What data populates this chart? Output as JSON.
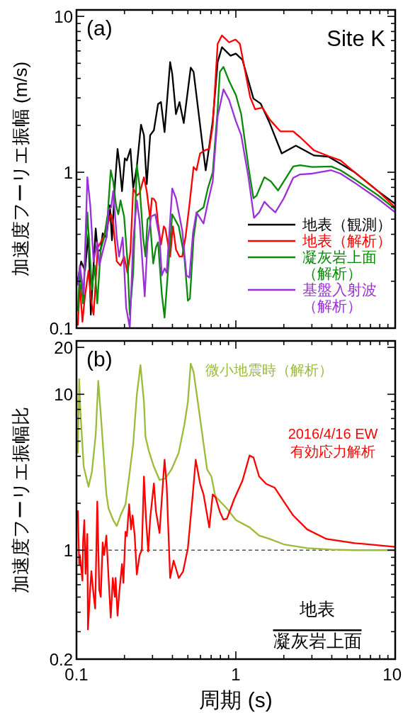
{
  "chart_data": [
    {
      "type": "line",
      "ylabel": "加速度フーリエ振幅 (m/s)",
      "log": "xy",
      "legend": "bottom right",
      "tick_labels": "y",
      "annotations": [
        "(a)",
        "Site K"
      ],
      "xlim": [
        0.1,
        10
      ],
      "ylim": [
        0.1,
        11
      ],
      "xticks": [
        0.1,
        {
          "value": 0.2,
          "label": null
        },
        {
          "value": 0.3,
          "label": null
        },
        {
          "value": 0.4,
          "label": null
        },
        {
          "value": 0.5,
          "label": null
        },
        {
          "value": 0.6,
          "label": null
        },
        {
          "value": 0.7,
          "label": null
        },
        {
          "value": 0.8,
          "label": null
        },
        {
          "value": 0.9,
          "label": null
        },
        1,
        {
          "value": 2,
          "label": null
        },
        {
          "value": 3,
          "label": null
        },
        {
          "value": 4,
          "label": null
        },
        {
          "value": 5,
          "label": null
        },
        {
          "value": 6,
          "label": null
        },
        {
          "value": 7,
          "label": null
        },
        {
          "value": 8,
          "label": null
        },
        {
          "value": 9,
          "label": null
        },
        10
      ],
      "yticks": [
        0.1,
        {
          "value": 0.2,
          "label": null
        },
        {
          "value": 0.3,
          "label": null
        },
        {
          "value": 0.4,
          "label": null
        },
        {
          "value": 0.5,
          "label": null
        },
        {
          "value": 0.6,
          "label": null
        },
        {
          "value": 0.7,
          "label": null
        },
        {
          "value": 0.8,
          "label": null
        },
        {
          "value": 0.9,
          "label": null
        },
        1,
        {
          "value": 2,
          "label": null
        },
        {
          "value": 3,
          "label": null
        },
        {
          "value": 4,
          "label": null
        },
        {
          "value": 5,
          "label": null
        },
        {
          "value": 6,
          "label": null
        },
        {
          "value": 7,
          "label": null
        },
        {
          "value": 8,
          "label": null
        },
        {
          "value": 9,
          "label": null
        },
        10
      ],
      "series": [
        {
          "name": "地表（観測）",
          "color": "#000000",
          "x": [
            0.102,
            0.107,
            0.113,
            0.119,
            0.123,
            0.128,
            0.132,
            0.136,
            0.142,
            0.146,
            0.154,
            0.162,
            0.167,
            0.174,
            0.181,
            0.187,
            0.193,
            0.201,
            0.207,
            0.218,
            0.227,
            0.239,
            0.254,
            0.265,
            0.276,
            0.29,
            0.306,
            0.325,
            0.339,
            0.357,
            0.387,
            0.399,
            0.421,
            0.443,
            0.471,
            0.521,
            0.543,
            0.627,
            0.647,
            0.667,
            0.716,
            0.769,
            0.818,
            0.926,
            1.0,
            1.1,
            1.29,
            1.43,
            1.63,
            1.94,
            2.38,
            3.1,
            3.81,
            5.57,
            7.82,
            10
          ],
          "values": [
            0.205,
            0.268,
            0.234,
            0.406,
            0.122,
            0.252,
            0.436,
            0.31,
            0.32,
            0.406,
            0.381,
            0.614,
            0.366,
            0.813,
            1.41,
            1.08,
            0.756,
            1.23,
            1.19,
            1.41,
            0.787,
            1.08,
            2.02,
            1.73,
            0.838,
            1.73,
            1.86,
            2.74,
            2.82,
            1.81,
            5.09,
            4.27,
            2.36,
            2.82,
            2.07,
            4.69,
            4.41,
            1.32,
            1.03,
            1.27,
            2.13,
            5.09,
            6.34,
            5.59,
            5.77,
            5.26,
            2.97,
            2.76,
            2.07,
            1.32,
            1.48,
            1.28,
            1.26,
            1.0,
            0.755,
            0.627
          ]
        },
        {
          "name": "地表（解析）",
          "color": "#ff0000",
          "x": [
            0.102,
            0.105,
            0.109,
            0.113,
            0.119,
            0.123,
            0.128,
            0.131,
            0.136,
            0.142,
            0.149,
            0.159,
            0.165,
            0.17,
            0.179,
            0.189,
            0.199,
            0.209,
            0.218,
            0.227,
            0.239,
            0.249,
            0.265,
            0.276,
            0.29,
            0.297,
            0.306,
            0.315,
            0.325,
            0.339,
            0.353,
            0.361,
            0.387,
            0.403,
            0.421,
            0.443,
            0.461,
            0.485,
            0.511,
            0.543,
            0.566,
            0.596,
            0.647,
            0.681,
            0.716,
            0.769,
            0.818,
            0.907,
            0.995,
            1.06,
            1.23,
            1.32,
            1.47,
            1.63,
            1.9,
            2.29,
            2.53,
            3.1,
            3.81,
            4.54,
            5.57,
            7.82,
            10
          ],
          "values": [
            0.105,
            0.19,
            0.11,
            0.16,
            0.234,
            0.155,
            0.122,
            0.177,
            0.33,
            0.355,
            0.393,
            0.484,
            0.537,
            0.469,
            0.268,
            0.252,
            0.288,
            0.227,
            0.31,
            0.787,
            0.71,
            0.733,
            0.929,
            0.756,
            0.499,
            0.681,
            0.674,
            0.64,
            0.469,
            0.344,
            0.45,
            0.436,
            0.288,
            0.45,
            0.32,
            0.288,
            0.288,
            0.393,
            0.614,
            1.08,
            1.03,
            1.32,
            1.39,
            1.41,
            2.0,
            6.67,
            7.55,
            6.81,
            7.1,
            6.67,
            3.03,
            2.54,
            2.6,
            2.18,
            1.83,
            1.83,
            1.68,
            1.38,
            1.27,
            1.19,
            1.0,
            0.755,
            0.596
          ]
        },
        {
          "name": "凝灰岩上面（解析）",
          "color": "#0a8a0a",
          "x": [
            0.102,
            0.105,
            0.11,
            0.117,
            0.122,
            0.125,
            0.13,
            0.135,
            0.142,
            0.149,
            0.157,
            0.164,
            0.17,
            0.177,
            0.183,
            0.189,
            0.199,
            0.209,
            0.216,
            0.227,
            0.239,
            0.249,
            0.262,
            0.271,
            0.279,
            0.288,
            0.303,
            0.315,
            0.325,
            0.343,
            0.357,
            0.376,
            0.399,
            0.438,
            0.475,
            0.5,
            0.515,
            0.543,
            0.571,
            0.627,
            0.667,
            0.716,
            0.769,
            0.794,
            0.836,
            0.907,
            1.0,
            1.08,
            1.2,
            1.29,
            1.35,
            1.51,
            1.66,
            1.84,
            2.0,
            2.29,
            2.53,
            3.01,
            3.97,
            4.54,
            5.57,
            7.82,
            10
          ],
          "values": [
            0.13,
            0.234,
            0.144,
            0.553,
            0.268,
            0.177,
            0.252,
            0.144,
            0.32,
            0.381,
            0.537,
            1.03,
            0.874,
            0.614,
            0.537,
            0.66,
            0.52,
            0.268,
            0.122,
            0.227,
            1.11,
            0.813,
            0.381,
            0.288,
            0.499,
            0.52,
            0.26,
            0.33,
            0.355,
            0.166,
            0.117,
            0.242,
            0.537,
            0.45,
            0.288,
            0.15,
            0.155,
            0.381,
            0.553,
            0.596,
            0.787,
            1.0,
            2.54,
            4.41,
            4.74,
            3.85,
            3.13,
            2.36,
            1.08,
            0.681,
            0.71,
            0.929,
            0.874,
            0.764,
            0.874,
            1.09,
            1.11,
            1.08,
            1.09,
            1.03,
            0.901,
            0.71,
            0.58
          ]
        },
        {
          "name": "基盤入射波（解析）",
          "color": "#9b30d9",
          "x": [
            0.102,
            0.105,
            0.111,
            0.117,
            0.122,
            0.128,
            0.135,
            0.139,
            0.146,
            0.154,
            0.159,
            0.165,
            0.17,
            0.179,
            0.185,
            0.195,
            0.205,
            0.216,
            0.227,
            0.239,
            0.249,
            0.268,
            0.279,
            0.294,
            0.312,
            0.332,
            0.343,
            0.357,
            0.368,
            0.399,
            0.421,
            0.461,
            0.49,
            0.511,
            0.538,
            0.566,
            0.627,
            0.667,
            0.716,
            0.769,
            0.836,
            0.907,
            1.0,
            1.08,
            1.2,
            1.3,
            1.4,
            1.51,
            1.63,
            1.77,
            2.0,
            2.29,
            2.53,
            3.01,
            3.97,
            4.54,
            5.57,
            7.82,
            10
          ],
          "values": [
            0.19,
            0.252,
            0.166,
            0.929,
            0.614,
            0.268,
            0.355,
            0.252,
            0.31,
            0.381,
            0.577,
            0.596,
            0.756,
            0.381,
            0.288,
            0.381,
            0.135,
            0.101,
            0.366,
            0.66,
            0.484,
            0.16,
            0.355,
            0.52,
            0.537,
            0.381,
            0.218,
            0.242,
            0.227,
            0.787,
            0.681,
            0.423,
            0.218,
            0.211,
            0.406,
            0.553,
            0.469,
            0.64,
            0.874,
            2.29,
            3.4,
            2.91,
            2.13,
            1.73,
            0.929,
            0.51,
            0.553,
            0.647,
            0.596,
            0.553,
            0.681,
            0.921,
            0.969,
            0.98,
            1.03,
            0.98,
            0.856,
            0.674,
            0.553
          ]
        }
      ]
    },
    {
      "type": "line",
      "xlabel": "周期 (s)",
      "ylabel": "加速度フーリエ振幅比",
      "log": "xy",
      "legend": false,
      "annotations": [
        "(b)",
        "地表",
        "凝灰岩上面"
      ],
      "xlim": [
        0.1,
        10
      ],
      "ylim": [
        0.2,
        22
      ],
      "xticks": [
        0.1,
        {
          "value": 0.2,
          "label": null
        },
        {
          "value": 0.3,
          "label": null
        },
        {
          "value": 0.4,
          "label": null
        },
        {
          "value": 0.5,
          "label": null
        },
        {
          "value": 0.6,
          "label": null
        },
        {
          "value": 0.7,
          "label": null
        },
        {
          "value": 0.8,
          "label": null
        },
        {
          "value": 0.9,
          "label": null
        },
        1,
        {
          "value": 2,
          "label": null
        },
        {
          "value": 3,
          "label": null
        },
        {
          "value": 4,
          "label": null
        },
        {
          "value": 5,
          "label": null
        },
        {
          "value": 6,
          "label": null
        },
        {
          "value": 7,
          "label": null
        },
        {
          "value": 8,
          "label": null
        },
        {
          "value": 9,
          "label": null
        },
        10
      ],
      "yticks": [
        0.2,
        {
          "value": 0.3,
          "label": null
        },
        {
          "value": 0.4,
          "label": null
        },
        {
          "value": 0.5,
          "label": null
        },
        {
          "value": 0.6,
          "label": null
        },
        {
          "value": 0.7,
          "label": null
        },
        {
          "value": 0.8,
          "label": null
        },
        {
          "value": 0.9,
          "label": null
        },
        1,
        {
          "value": 2,
          "label": null
        },
        {
          "value": 3,
          "label": null
        },
        {
          "value": 4,
          "label": null
        },
        {
          "value": 5,
          "label": null
        },
        {
          "value": 6,
          "label": null
        },
        {
          "value": 7,
          "label": null
        },
        {
          "value": 8,
          "label": null
        },
        {
          "value": 9,
          "label": null
        },
        10,
        20
      ],
      "ref_lines": [
        {
          "axis": "y",
          "value": 1,
          "color": "#555555",
          "line_style": "dashed"
        }
      ],
      "series": [
        {
          "name": "微小地震時（解析）",
          "color": "#9bbb3a",
          "x": [
            0.102,
            0.104,
            0.106,
            0.111,
            0.119,
            0.125,
            0.132,
            0.137,
            0.143,
            0.154,
            0.159,
            0.17,
            0.179,
            0.189,
            0.203,
            0.216,
            0.227,
            0.239,
            0.252,
            0.265,
            0.271,
            0.284,
            0.306,
            0.332,
            0.361,
            0.395,
            0.438,
            0.475,
            0.5,
            0.521,
            0.543,
            0.583,
            0.627,
            0.66,
            0.702,
            0.739,
            0.754,
            0.879,
            1.0,
            1.22,
            1.4,
            1.63,
            2.0,
            2.8,
            3.97,
            5.57,
            10
          ],
          "values": [
            4.22,
            12.5,
            7.5,
            3.43,
            2.55,
            3.19,
            5.51,
            12.2,
            6.77,
            2.28,
            1.85,
            1.56,
            1.43,
            1.67,
            1.97,
            3.19,
            4.82,
            9.9,
            15.4,
            8.93,
            5.34,
            4.35,
            3.43,
            2.82,
            2.88,
            3.3,
            4.22,
            6.36,
            8.93,
            15.7,
            13.9,
            8.31,
            4.82,
            3.3,
            2.97,
            2.28,
            2.18,
            1.85,
            1.56,
            1.4,
            1.24,
            1.18,
            1.09,
            1.03,
            1.01,
            1.0,
            1.0
          ]
        },
        {
          "name": "2016/4/16 EW 有効応力解析",
          "color": "#ff0000",
          "x": [
            0.102,
            0.104,
            0.105,
            0.109,
            0.11,
            0.112,
            0.114,
            0.117,
            0.118,
            0.122,
            0.124,
            0.128,
            0.131,
            0.135,
            0.139,
            0.142,
            0.146,
            0.149,
            0.154,
            0.159,
            0.164,
            0.169,
            0.174,
            0.176,
            0.181,
            0.185,
            0.193,
            0.197,
            0.203,
            0.207,
            0.214,
            0.22,
            0.225,
            0.232,
            0.239,
            0.249,
            0.257,
            0.265,
            0.273,
            0.282,
            0.29,
            0.306,
            0.315,
            0.332,
            0.343,
            0.357,
            0.368,
            0.387,
            0.407,
            0.438,
            0.466,
            0.5,
            0.538,
            0.56,
            0.596,
            0.627,
            0.681,
            0.716,
            0.746,
            0.794,
            0.836,
            0.879,
            0.975,
            1.1,
            1.22,
            1.29,
            1.4,
            1.55,
            1.75,
            2.0,
            2.29,
            2.8,
            3.7,
            5.57,
            10
          ],
          "values": [
            1.78,
            0.815,
            0.931,
            0.637,
            1.14,
            1.56,
            0.705,
            1.27,
            0.31,
            0.574,
            0.734,
            0.518,
            0.422,
            2.05,
            0.557,
            0.502,
            1.12,
            0.931,
            1.24,
            0.663,
            0.369,
            0.663,
            0.502,
            0.663,
            0.38,
            0.518,
            0.815,
            0.617,
            1.31,
            1.23,
            1.97,
            1.36,
            1.67,
            1.23,
            0.698,
            0.931,
            1.0,
            2.97,
            1.6,
            0.98,
            1.6,
            2.68,
            1.78,
            1.29,
            2.12,
            3.8,
            2.6,
            0.663,
            0.857,
            0.663,
            0.727,
            1.03,
            2.35,
            3.8,
            2.68,
            2.28,
            1.4,
            2.28,
            2.18,
            1.76,
            1.57,
            1.59,
            2.12,
            2.79,
            4.05,
            3.93,
            2.97,
            2.66,
            2.52,
            2.05,
            1.67,
            1.36,
            1.18,
            1.11,
            1.05
          ]
        }
      ]
    }
  ]
}
